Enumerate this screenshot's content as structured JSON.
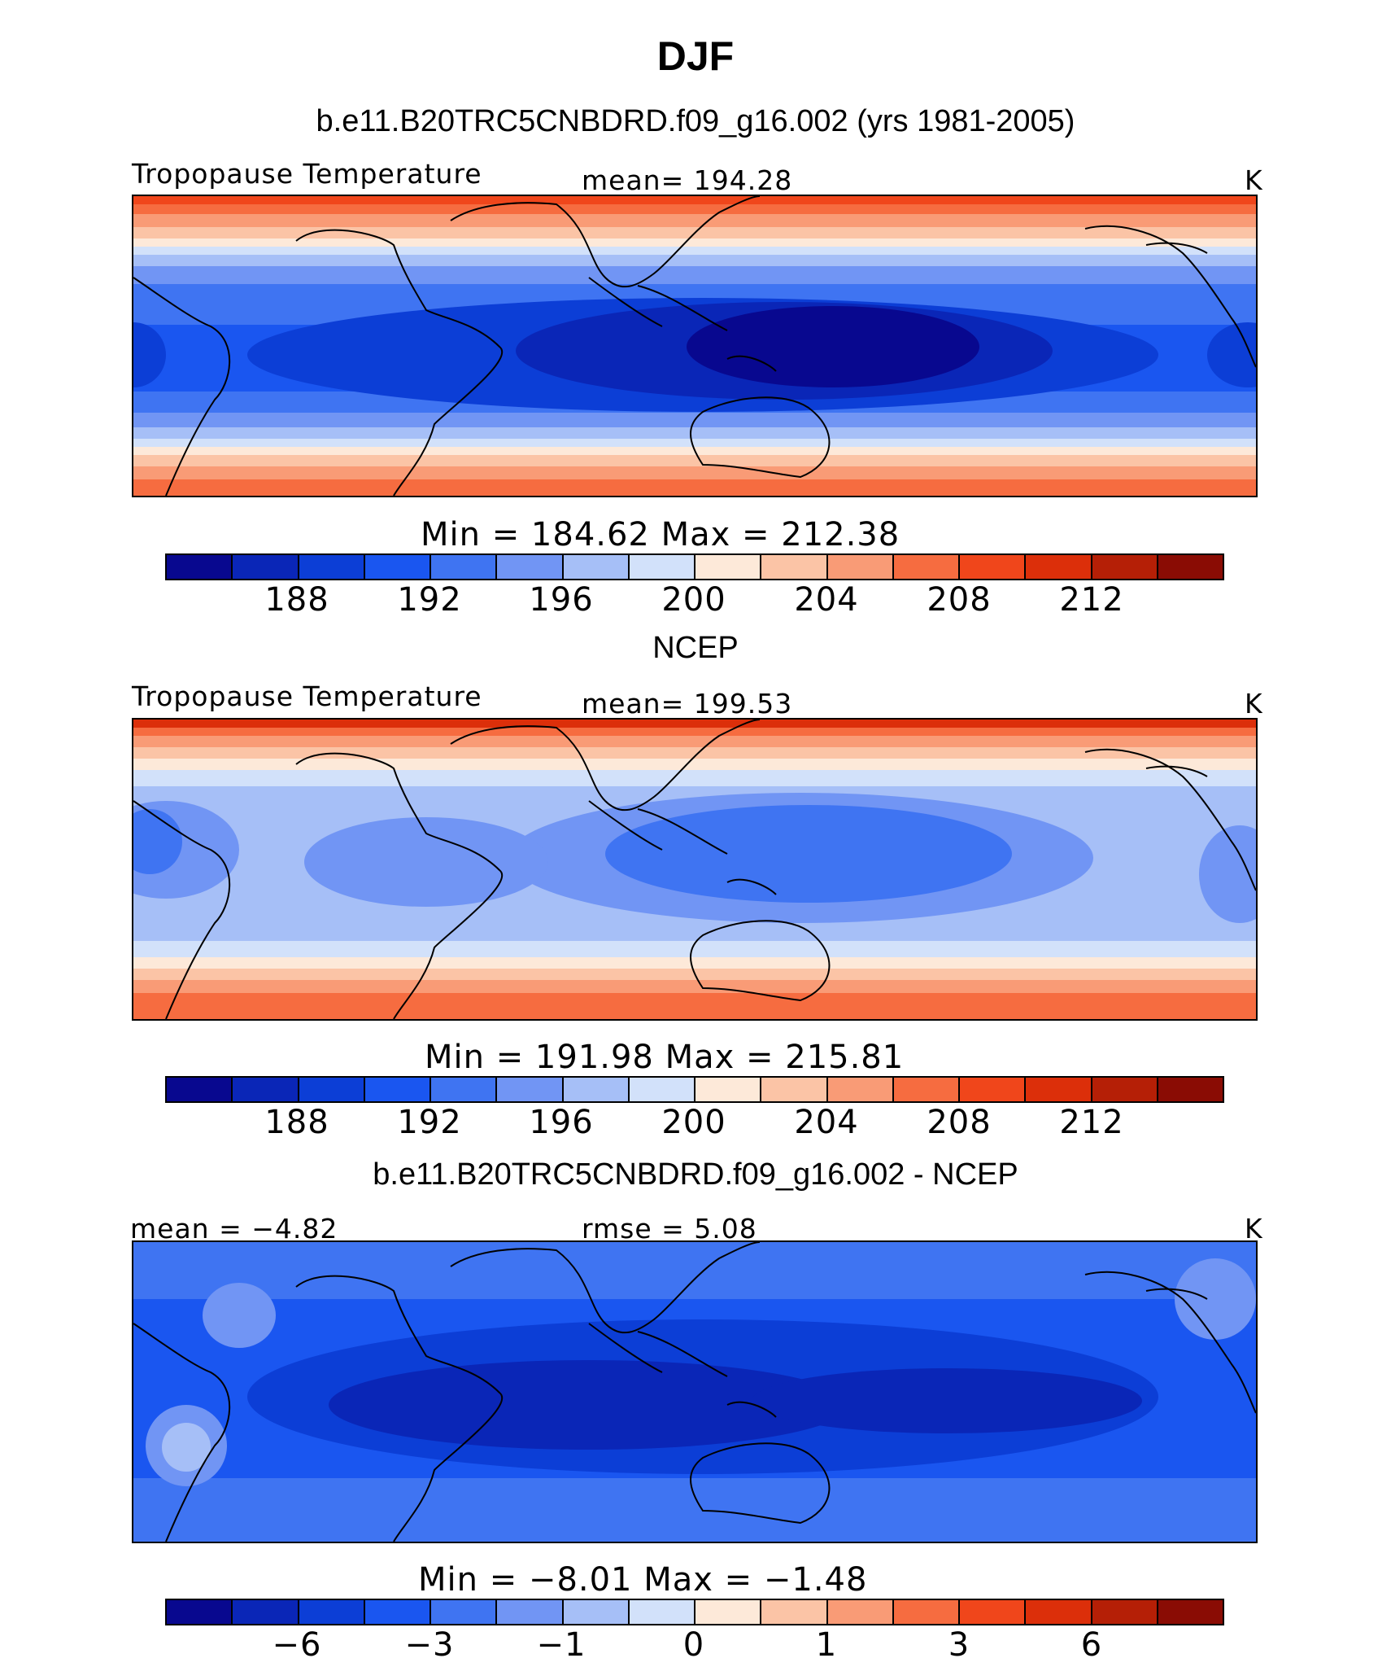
{
  "title": "DJF",
  "palette": [
    "#08088f",
    "#0a26b7",
    "#0c3ed6",
    "#1a56f0",
    "#3f74f2",
    "#7195f4",
    "#a6bff7",
    "#d2e1fa",
    "#fde9d9",
    "#fbc4a6",
    "#f99b76",
    "#f66c40",
    "#f0461b",
    "#dc2f0a",
    "#b51f06",
    "#8a0c04"
  ],
  "chart_data": [
    {
      "type": "heatmap",
      "subtitle": "b.e11.B20TRC5CNBDRD.f09_g16.002 (yrs 1981-2005)",
      "left_label": "Tropopause Temperature",
      "center_label": "mean= 194.28",
      "units": "K",
      "stats": "Min = 184.62 Max = 212.38",
      "min": 184.62,
      "max": 212.38,
      "mean": 194.28,
      "colorbar_ticks": [
        "188",
        "192",
        "196",
        "200",
        "204",
        "208",
        "212"
      ]
    },
    {
      "type": "heatmap",
      "subtitle": "NCEP",
      "left_label": "Tropopause Temperature",
      "center_label": "mean= 199.53",
      "units": "K",
      "stats": "Min = 191.98 Max = 215.81",
      "min": 191.98,
      "max": 215.81,
      "mean": 199.53,
      "colorbar_ticks": [
        "188",
        "192",
        "196",
        "200",
        "204",
        "208",
        "212"
      ]
    },
    {
      "type": "heatmap",
      "subtitle": "b.e11.B20TRC5CNBDRD.f09_g16.002 - NCEP",
      "left_label": "mean = −4.82",
      "center_label": "rmse = 5.08",
      "units": "K",
      "stats": "Min = −8.01 Max = −1.48",
      "min": -8.01,
      "max": -1.48,
      "mean": -4.82,
      "rmse": 5.08,
      "colorbar_ticks": [
        "−6",
        "−3",
        "−1",
        "0",
        "1",
        "3",
        "6"
      ]
    }
  ]
}
